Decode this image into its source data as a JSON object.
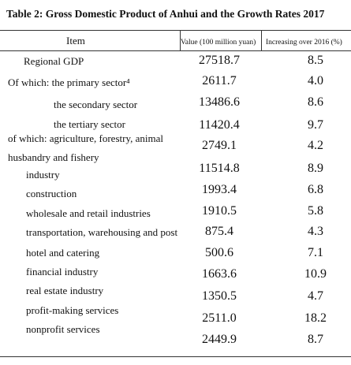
{
  "title": "Table 2: Gross Domestic Product of Anhui and the Growth Rates 2017",
  "table": {
    "header": [
      "Item",
      "Value (100 million yuan)",
      "Increasing over 2016 (%)"
    ],
    "rows": [
      [
        "Regional GDP",
        "27518.7",
        "8.5"
      ],
      [
        "Of which: the primary sector⁴",
        "2611.7",
        "4.0"
      ],
      [
        "the secondary sector",
        "13486.6",
        "8.6"
      ],
      [
        "the tertiary sector",
        "11420.4",
        "9.7"
      ],
      [
        [
          "of which: agriculture, forestry, animal",
          "husbandry and fishery"
        ],
        "2749.1",
        "4.2"
      ],
      [
        "industry",
        "11514.8",
        "8.9"
      ],
      [
        "construction",
        "1993.4",
        "6.8"
      ],
      [
        "wholesale and retail industries",
        "1910.5",
        "5.8"
      ],
      [
        "transportation, warehousing and post",
        "875.4",
        "4.3"
      ],
      [
        "hotel and catering",
        "500.6",
        "7.1"
      ],
      [
        "financial industry",
        "1663.6",
        "10.9"
      ],
      [
        "real estate industry",
        "1350.5",
        "4.7"
      ],
      [
        "profit-making services",
        "2511.0",
        "18.2"
      ],
      [
        "nonprofit services",
        "2449.9",
        "8.7"
      ]
    ]
  }
}
